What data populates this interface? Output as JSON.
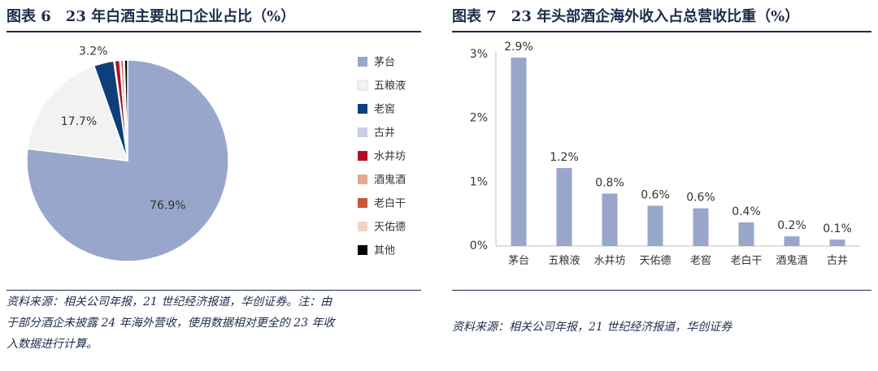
{
  "left": {
    "title": "图表 6　23 年白酒主要出口企业占比（%）",
    "source_lines": [
      "资料来源：相关公司年报，21 世纪经济报道，华创证券。注：由",
      "于部分酒企未披露 24 年海外营收，使用数据相对更全的 23 年收",
      "入数据进行计算。"
    ]
  },
  "right": {
    "title": "图表 7　23 年头部酒企海外收入占总营收比重（%）",
    "source_lines": [
      "资料来源：相关公司年报，21 世纪经济报道，华创证券"
    ]
  },
  "chart_data": [
    {
      "type": "pie",
      "legend_position": "right",
      "slices": [
        {
          "name": "茅台",
          "value": 76.9,
          "label": "76.9%",
          "color": "#98a6cc"
        },
        {
          "name": "五粮液",
          "value": 17.7,
          "label": "17.7%",
          "color": "#f2f2f2"
        },
        {
          "name": "老窖",
          "value": 3.2,
          "label": "3.2%",
          "color": "#0f3f7a"
        },
        {
          "name": "古井",
          "value": 0.15,
          "label": "",
          "color": "#c9cfe6"
        },
        {
          "name": "水井坊",
          "value": 0.8,
          "label": "",
          "color": "#b20f23"
        },
        {
          "name": "酒鬼酒",
          "value": 0.15,
          "label": "",
          "color": "#e3a98a"
        },
        {
          "name": "老白干",
          "value": 0.4,
          "label": "",
          "color": "#c8563e"
        },
        {
          "name": "天佑德",
          "value": 0.2,
          "label": "",
          "color": "#f2d3c4"
        },
        {
          "name": "其他",
          "value": 0.5,
          "label": "",
          "color": "#000000"
        }
      ]
    },
    {
      "type": "bar",
      "categories": [
        "茅台",
        "五粮液",
        "水井坊",
        "天佑德",
        "老窖",
        "老白干",
        "酒鬼酒",
        "古井"
      ],
      "values": [
        2.95,
        1.22,
        0.82,
        0.63,
        0.59,
        0.37,
        0.15,
        0.1
      ],
      "data_labels": [
        "2.9%",
        "1.2%",
        "0.8%",
        "0.6%",
        "0.6%",
        "0.4%",
        "0.2%",
        "0.1%"
      ],
      "ylim": [
        0,
        3
      ],
      "yticks": [
        0,
        1,
        2,
        3
      ],
      "ytick_labels": [
        "0%",
        "1%",
        "2%",
        "3%"
      ],
      "bar_color": "#98a6cc",
      "grid": false
    }
  ]
}
